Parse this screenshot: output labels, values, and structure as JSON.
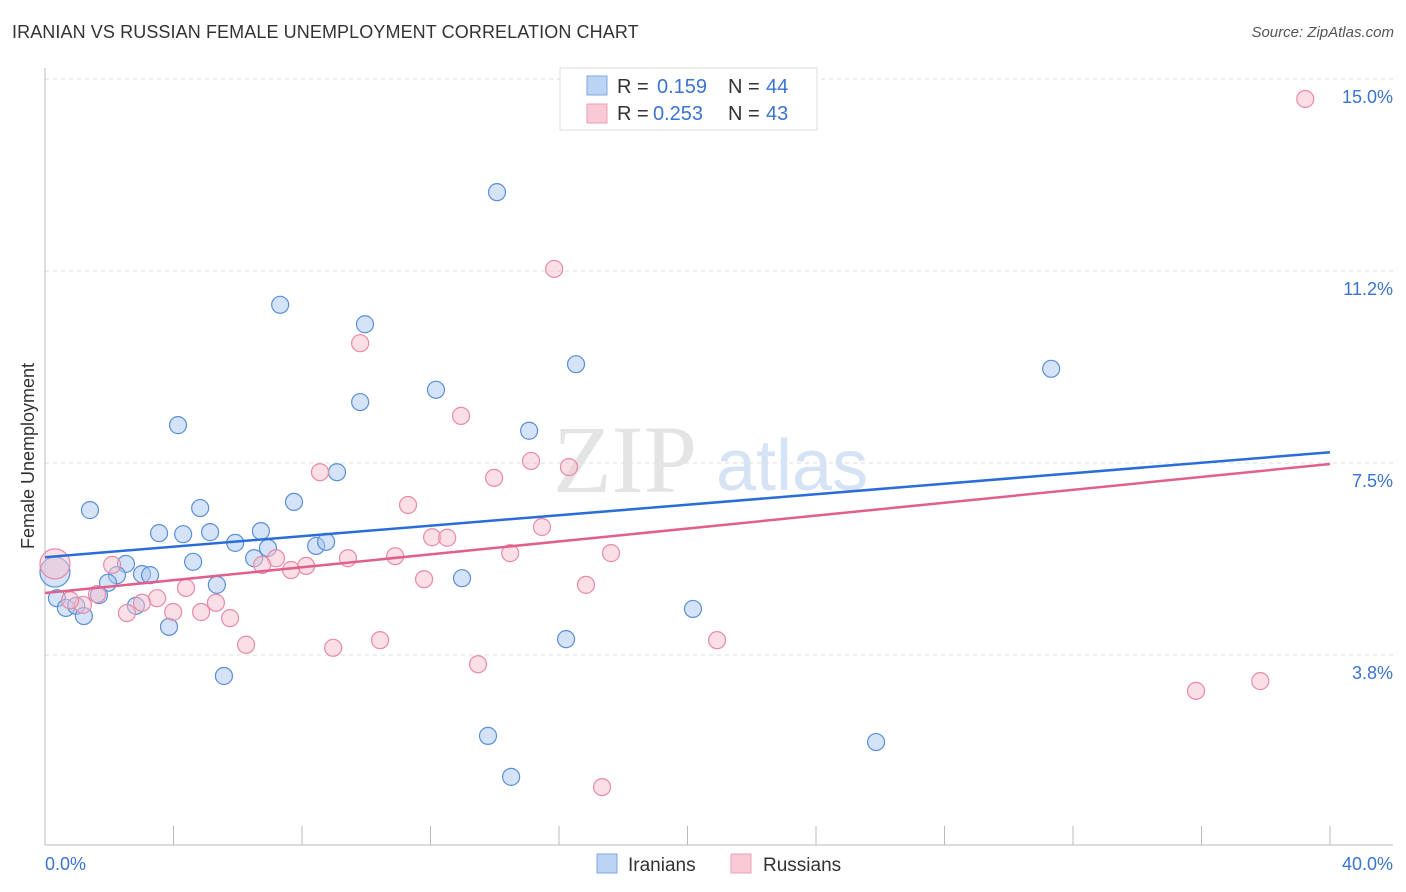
{
  "chart_data": {
    "type": "scatter",
    "title": "IRANIAN VS RUSSIAN FEMALE UNEMPLOYMENT CORRELATION CHART",
    "source": "Source: ZipAtlas.com",
    "xlabel": "",
    "ylabel": "Female Unemployment",
    "xlim": [
      0,
      40
    ],
    "ylim": [
      0,
      15.0
    ],
    "x_tick_labels": [
      "0.0%",
      "40.0%"
    ],
    "y_ticks": [
      3.75,
      7.5,
      11.25,
      15.0
    ],
    "y_tick_labels": [
      "3.8%",
      "7.5%",
      "11.2%",
      "15.0%"
    ],
    "grid": true,
    "watermark": "ZIPatlas",
    "legend_position": "top-center",
    "stats": [
      {
        "r_label": "R =",
        "r": "0.159",
        "n_label": "N =",
        "n": "44"
      },
      {
        "r_label": "R =",
        "r": "0.253",
        "n_label": "N =",
        "n": "43"
      }
    ],
    "series": [
      {
        "name": "Iranians",
        "color": "#a9c8f0",
        "stroke": "#5b8fd6",
        "line_color": "#2a6dd6",
        "trend": [
          [
            0,
            5.66
          ],
          [
            40,
            7.71
          ]
        ],
        "points": [
          [
            14.07,
            12.79
          ],
          [
            7.32,
            10.59
          ],
          [
            9.96,
            10.21
          ],
          [
            16.53,
            9.43
          ],
          [
            31.32,
            9.34
          ],
          [
            12.17,
            8.93
          ],
          [
            9.81,
            8.69
          ],
          [
            4.14,
            8.24
          ],
          [
            15.07,
            8.13
          ],
          [
            9.09,
            7.32
          ],
          [
            7.75,
            6.74
          ],
          [
            1.4,
            6.58
          ],
          [
            4.83,
            6.62
          ],
          [
            3.55,
            6.13
          ],
          [
            4.3,
            6.11
          ],
          [
            5.14,
            6.15
          ],
          [
            6.72,
            6.17
          ],
          [
            5.92,
            5.94
          ],
          [
            8.44,
            5.88
          ],
          [
            8.75,
            5.96
          ],
          [
            6.94,
            5.84
          ],
          [
            6.51,
            5.64
          ],
          [
            4.61,
            5.57
          ],
          [
            2.52,
            5.53
          ],
          [
            3.02,
            5.33
          ],
          [
            3.27,
            5.31
          ],
          [
            2.24,
            5.31
          ],
          [
            1.96,
            5.16
          ],
          [
            5.35,
            5.12
          ],
          [
            12.98,
            5.25
          ],
          [
            0.31,
            5.37,
            "big"
          ],
          [
            0.37,
            4.86
          ],
          [
            1.68,
            4.92
          ],
          [
            0.65,
            4.67
          ],
          [
            0.97,
            4.71
          ],
          [
            1.21,
            4.51
          ],
          [
            2.83,
            4.71
          ],
          [
            3.86,
            4.3
          ],
          [
            20.17,
            4.65
          ],
          [
            16.22,
            4.06
          ],
          [
            5.57,
            3.34
          ],
          [
            13.79,
            2.17
          ],
          [
            25.87,
            2.05
          ],
          [
            14.51,
            1.37
          ]
        ]
      },
      {
        "name": "Russians",
        "color": "#f7c0d0",
        "stroke": "#e88aa6",
        "line_color": "#e0608c",
        "trend": [
          [
            0,
            4.96
          ],
          [
            40,
            7.48
          ]
        ],
        "points": [
          [
            39.23,
            14.61
          ],
          [
            15.85,
            11.29
          ],
          [
            9.81,
            9.84
          ],
          [
            12.95,
            8.42
          ],
          [
            15.13,
            7.54
          ],
          [
            16.31,
            7.42
          ],
          [
            13.98,
            7.21
          ],
          [
            8.56,
            7.32
          ],
          [
            11.3,
            6.68
          ],
          [
            15.47,
            6.25
          ],
          [
            12.05,
            6.05
          ],
          [
            12.52,
            6.04
          ],
          [
            0.31,
            5.53,
            "big"
          ],
          [
            2.09,
            5.51
          ],
          [
            14.48,
            5.74
          ],
          [
            17.62,
            5.74
          ],
          [
            9.43,
            5.64
          ],
          [
            10.9,
            5.68
          ],
          [
            7.19,
            5.64
          ],
          [
            6.76,
            5.51
          ],
          [
            8.13,
            5.49
          ],
          [
            7.66,
            5.41
          ],
          [
            11.8,
            5.23
          ],
          [
            16.84,
            5.12
          ],
          [
            1.62,
            4.94
          ],
          [
            4.39,
            5.06
          ],
          [
            3.49,
            4.86
          ],
          [
            3.02,
            4.77
          ],
          [
            5.32,
            4.77
          ],
          [
            1.18,
            4.73
          ],
          [
            3.99,
            4.59
          ],
          [
            4.86,
            4.59
          ],
          [
            2.55,
            4.57
          ],
          [
            5.76,
            4.47
          ],
          [
            6.26,
            3.95
          ],
          [
            8.97,
            3.89
          ],
          [
            10.43,
            4.04
          ],
          [
            20.92,
            4.04
          ],
          [
            13.48,
            3.57
          ],
          [
            35.83,
            3.05
          ],
          [
            37.83,
            3.24
          ],
          [
            17.34,
            1.17
          ],
          [
            0.78,
            4.82
          ]
        ]
      }
    ]
  }
}
